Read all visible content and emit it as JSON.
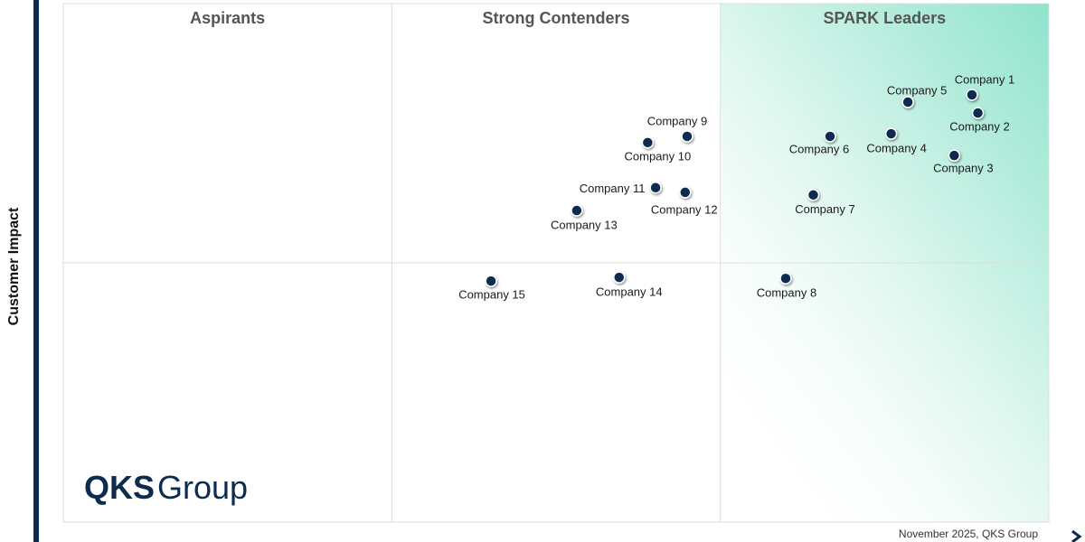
{
  "chart_data": {
    "type": "scatter",
    "y_label": "Customer Impact",
    "quadrant_titles": [
      "Aspirants",
      "Strong Contenders",
      "SPARK Leaders"
    ],
    "xlim": [
      0,
      100
    ],
    "ylim": [
      0,
      100
    ],
    "x_dividers": [
      33.33,
      66.67
    ],
    "y_divider": 50,
    "color": "#0d2a4f",
    "labels": [
      "Company 1",
      "Company 2",
      "Company 3",
      "Company 4",
      "Company 5",
      "Company 6",
      "Company 7",
      "Company 8",
      "Company 9",
      "Company 10",
      "Company 11",
      "Company 12",
      "Company 13",
      "Company 14",
      "Company 15"
    ],
    "x": [
      92.2,
      92.8,
      90.4,
      84.0,
      85.7,
      77.8,
      76.1,
      73.3,
      63.3,
      59.3,
      60.1,
      63.1,
      52.1,
      56.4,
      43.4
    ],
    "values": [
      82.4,
      78.9,
      70.7,
      74.9,
      81.0,
      74.4,
      63.1,
      47.0,
      74.4,
      73.2,
      64.5,
      63.6,
      60.1,
      47.2,
      46.5
    ]
  },
  "logo": {
    "bold": "QKS",
    "regular": "Group"
  },
  "footer": "November 2025, QKS Group"
}
